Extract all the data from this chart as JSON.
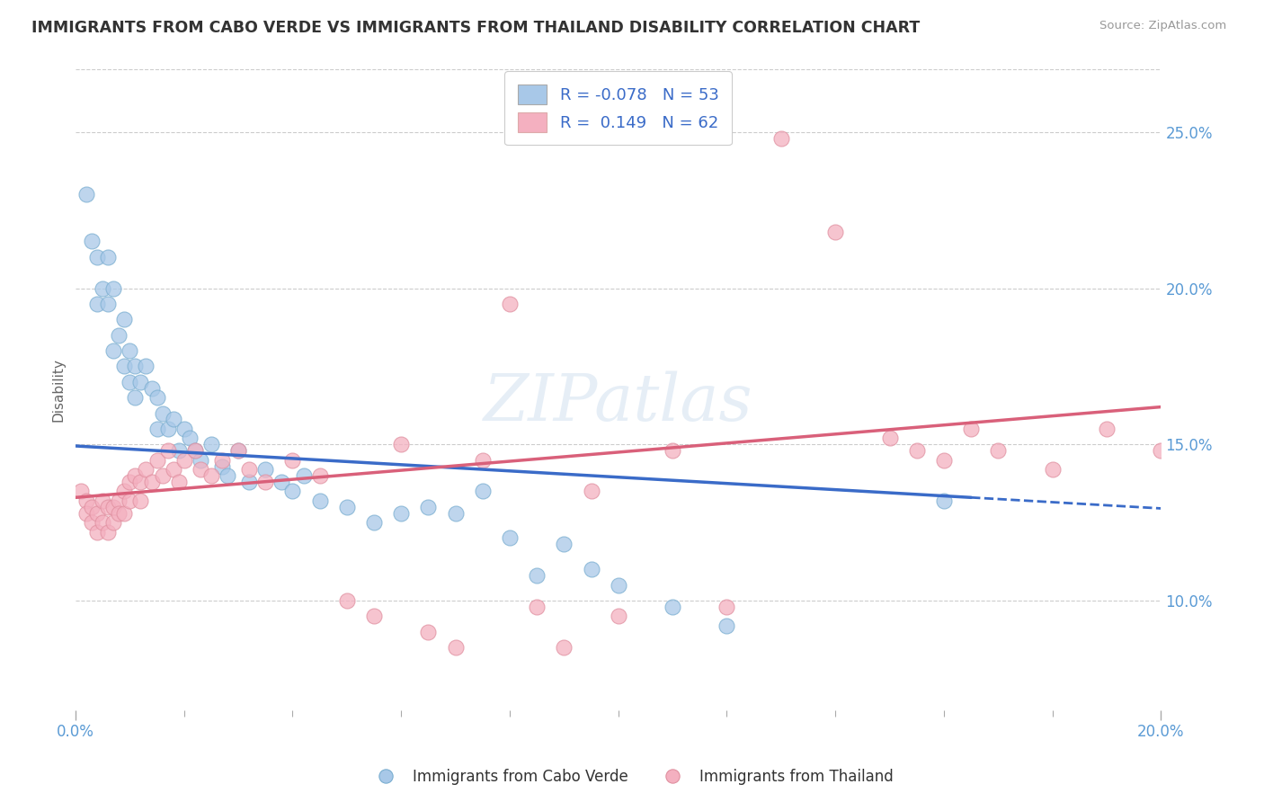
{
  "title": "IMMIGRANTS FROM CABO VERDE VS IMMIGRANTS FROM THAILAND DISABILITY CORRELATION CHART",
  "source": "Source: ZipAtlas.com",
  "ylabel": "Disability",
  "xmin": 0.0,
  "xmax": 0.2,
  "ymin": 0.065,
  "ymax": 0.27,
  "yticks": [
    0.1,
    0.15,
    0.2,
    0.25
  ],
  "ytick_labels": [
    "10.0%",
    "15.0%",
    "20.0%",
    "25.0%"
  ],
  "blue_color": "#a8c8e8",
  "pink_color": "#f4b0c0",
  "blue_line_color": "#3a6bc8",
  "pink_line_color": "#d9607a",
  "blue_R": -0.078,
  "blue_N": 53,
  "pink_R": 0.149,
  "pink_N": 62,
  "blue_intercept": 0.1495,
  "blue_slope": -0.1,
  "pink_intercept": 0.133,
  "pink_slope": 0.145,
  "legend_label_blue": "Immigrants from Cabo Verde",
  "legend_label_pink": "Immigrants from Thailand",
  "watermark": "ZIPatlas",
  "blue_scatter_x": [
    0.002,
    0.003,
    0.004,
    0.004,
    0.005,
    0.006,
    0.006,
    0.007,
    0.007,
    0.008,
    0.009,
    0.009,
    0.01,
    0.01,
    0.011,
    0.011,
    0.012,
    0.013,
    0.014,
    0.015,
    0.015,
    0.016,
    0.017,
    0.018,
    0.019,
    0.02,
    0.021,
    0.022,
    0.023,
    0.025,
    0.027,
    0.028,
    0.03,
    0.032,
    0.035,
    0.038,
    0.04,
    0.042,
    0.045,
    0.05,
    0.055,
    0.06,
    0.065,
    0.07,
    0.075,
    0.08,
    0.085,
    0.09,
    0.095,
    0.1,
    0.11,
    0.12,
    0.16
  ],
  "blue_scatter_y": [
    0.23,
    0.215,
    0.21,
    0.195,
    0.2,
    0.21,
    0.195,
    0.2,
    0.18,
    0.185,
    0.175,
    0.19,
    0.18,
    0.17,
    0.175,
    0.165,
    0.17,
    0.175,
    0.168,
    0.165,
    0.155,
    0.16,
    0.155,
    0.158,
    0.148,
    0.155,
    0.152,
    0.148,
    0.145,
    0.15,
    0.143,
    0.14,
    0.148,
    0.138,
    0.142,
    0.138,
    0.135,
    0.14,
    0.132,
    0.13,
    0.125,
    0.128,
    0.13,
    0.128,
    0.135,
    0.12,
    0.108,
    0.118,
    0.11,
    0.105,
    0.098,
    0.092,
    0.132
  ],
  "pink_scatter_x": [
    0.001,
    0.002,
    0.002,
    0.003,
    0.003,
    0.004,
    0.004,
    0.005,
    0.005,
    0.006,
    0.006,
    0.007,
    0.007,
    0.008,
    0.008,
    0.009,
    0.009,
    0.01,
    0.01,
    0.011,
    0.012,
    0.012,
    0.013,
    0.014,
    0.015,
    0.016,
    0.017,
    0.018,
    0.019,
    0.02,
    0.022,
    0.023,
    0.025,
    0.027,
    0.03,
    0.032,
    0.035,
    0.04,
    0.045,
    0.05,
    0.055,
    0.06,
    0.065,
    0.07,
    0.075,
    0.08,
    0.085,
    0.09,
    0.095,
    0.1,
    0.11,
    0.12,
    0.13,
    0.14,
    0.15,
    0.155,
    0.16,
    0.165,
    0.17,
    0.18,
    0.19,
    0.2
  ],
  "pink_scatter_y": [
    0.135,
    0.132,
    0.128,
    0.13,
    0.125,
    0.128,
    0.122,
    0.132,
    0.125,
    0.13,
    0.122,
    0.13,
    0.125,
    0.132,
    0.128,
    0.135,
    0.128,
    0.138,
    0.132,
    0.14,
    0.138,
    0.132,
    0.142,
    0.138,
    0.145,
    0.14,
    0.148,
    0.142,
    0.138,
    0.145,
    0.148,
    0.142,
    0.14,
    0.145,
    0.148,
    0.142,
    0.138,
    0.145,
    0.14,
    0.1,
    0.095,
    0.15,
    0.09,
    0.085,
    0.145,
    0.195,
    0.098,
    0.085,
    0.135,
    0.095,
    0.148,
    0.098,
    0.248,
    0.218,
    0.152,
    0.148,
    0.145,
    0.155,
    0.148,
    0.142,
    0.155,
    0.148
  ]
}
